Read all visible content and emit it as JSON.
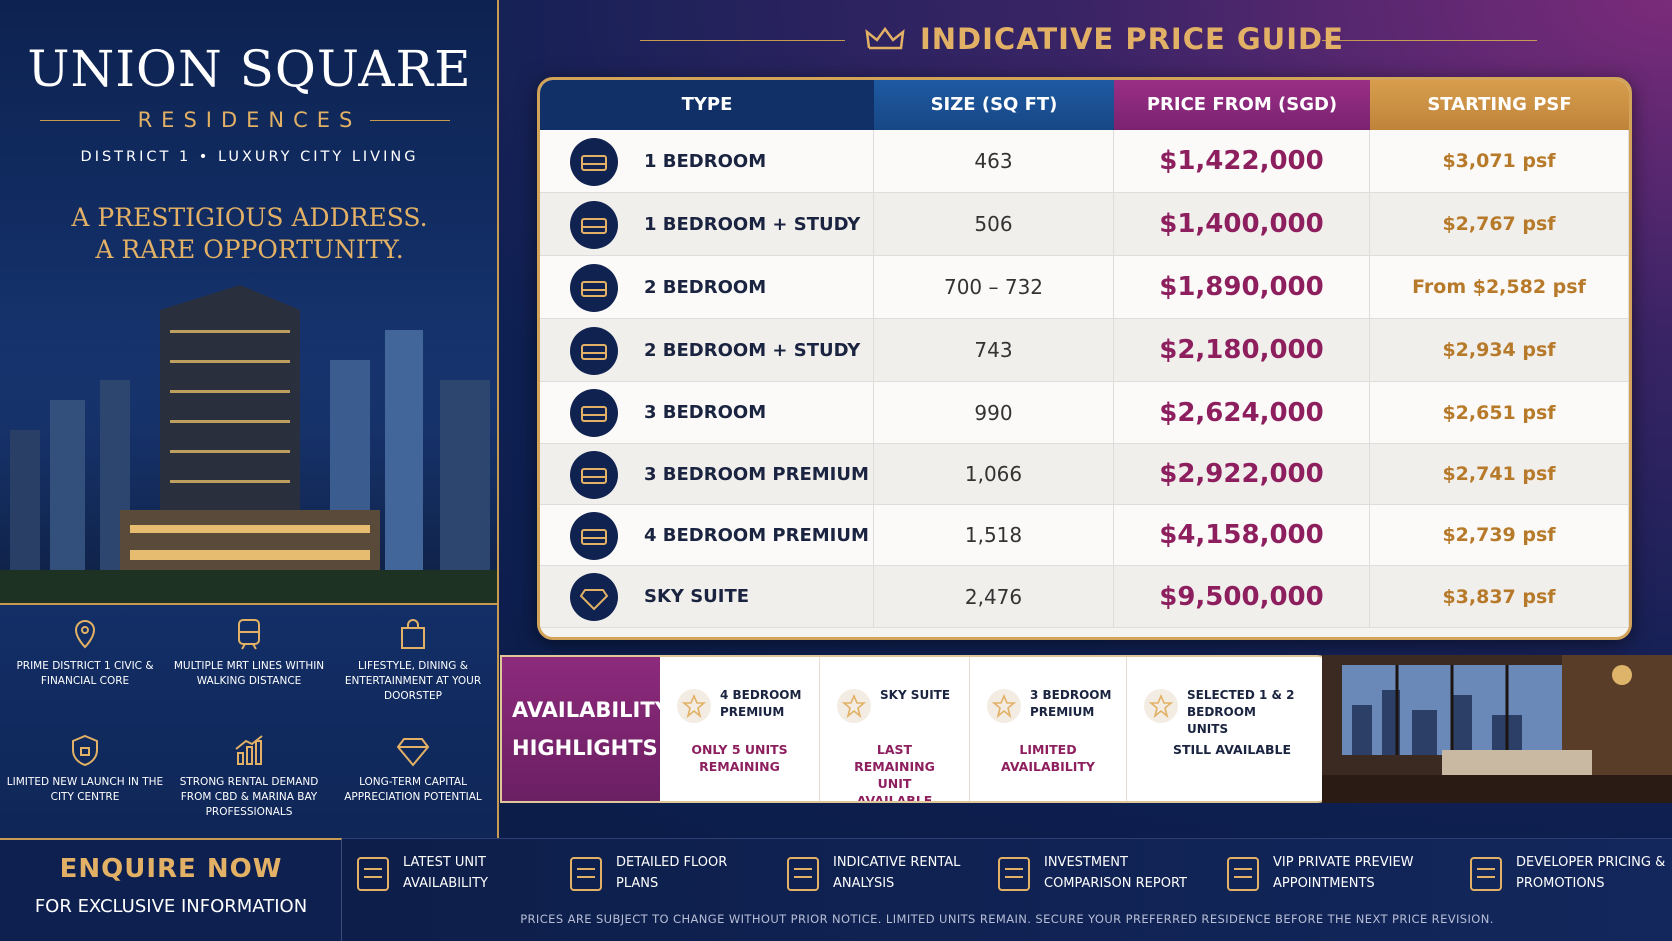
{
  "header": {
    "title": "UNION SQUARE",
    "subtitle": "RESIDENCES",
    "tagline": "DISTRICT 1 • LUXURY CITY LIVING",
    "headline_1": "A PRESTIGIOUS ADDRESS.",
    "headline_2": "A RARE OPPORTUNITY."
  },
  "features": [
    "PRIME DISTRICT 1 CIVIC & FINANCIAL CORE",
    "MULTIPLE MRT LINES WITHIN WALKING DISTANCE",
    "LIFESTYLE, DINING & ENTERTAINMENT AT YOUR DOORSTEP",
    "LIMITED NEW LAUNCH IN THE CITY CENTRE",
    "STRONG RENTAL DEMAND FROM CBD & MARINA BAY PROFESSIONALS",
    "LONG-TERM CAPITAL APPRECIATION POTENTIAL"
  ],
  "enquire": {
    "title": "ENQUIRE NOW",
    "subtitle": "FOR EXCLUSIVE INFORMATION"
  },
  "price_guide": {
    "title": "INDICATIVE PRICE GUIDE",
    "columns": [
      "TYPE",
      "SIZE (SQ FT)",
      "PRICE FROM (SGD)",
      "STARTING PSF"
    ],
    "rows": [
      [
        "1 BEDROOM",
        "463",
        "$1,422,000",
        "$3,071 psf"
      ],
      [
        "1 BEDROOM + STUDY",
        "506",
        "$1,400,000",
        "$2,767 psf"
      ],
      [
        "2 BEDROOM",
        "700 – 732",
        "$1,890,000",
        "From $2,582 psf"
      ],
      [
        "2 BEDROOM + STUDY",
        "743",
        "$2,180,000",
        "$2,934 psf"
      ],
      [
        "3 BEDROOM",
        "990",
        "$2,624,000",
        "$2,651 psf"
      ],
      [
        "3 BEDROOM PREMIUM",
        "1,066",
        "$2,922,000",
        "$2,741 psf"
      ],
      [
        "4 BEDROOM PREMIUM",
        "1,518",
        "$4,158,000",
        "$2,739 psf"
      ],
      [
        "SKY SUITE",
        "2,476",
        "$9,500,000",
        "$3,837 psf"
      ]
    ]
  },
  "availability": {
    "title": "AVAILABILITY HIGHLIGHTS",
    "items": [
      {
        "name": "4 BEDROOM PREMIUM",
        "note": "ONLY 5 UNITS REMAINING"
      },
      {
        "name": "SKY SUITE",
        "note": "LAST REMAINING UNIT AVAILABLE"
      },
      {
        "name": "3 BEDROOM PREMIUM",
        "note": "LIMITED AVAILABILITY"
      },
      {
        "name": "SELECTED 1 & 2 BEDROOM UNITS",
        "note": "STILL AVAILABLE"
      }
    ]
  },
  "services": [
    "LATEST UNIT AVAILABILITY",
    "DETAILED FLOOR PLANS",
    "INDICATIVE RENTAL ANALYSIS",
    "INVESTMENT COMPARISON REPORT",
    "VIP PRIVATE PREVIEW APPOINTMENTS",
    "DEVELOPER PRICING & PROMOTIONS"
  ],
  "disclaimer": "PRICES ARE SUBJECT TO CHANGE WITHOUT PRIOR NOTICE. LIMITED UNITS REMAIN. SECURE YOUR PREFERRED RESIDENCE BEFORE THE NEXT PRICE REVISION."
}
